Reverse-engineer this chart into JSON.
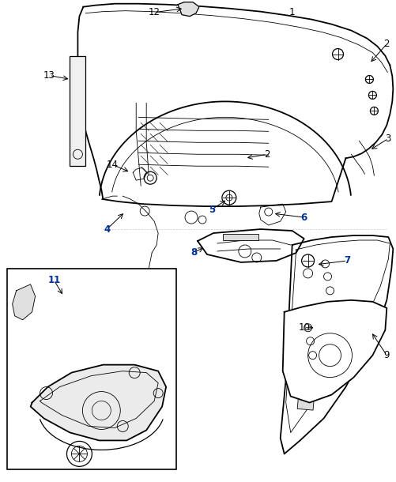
{
  "bg_color": "#ffffff",
  "line_color": "#000000",
  "label_color": "#000000",
  "bold_label_color": "#003399",
  "figsize": [
    5.02,
    6.1
  ],
  "dpi": 100
}
